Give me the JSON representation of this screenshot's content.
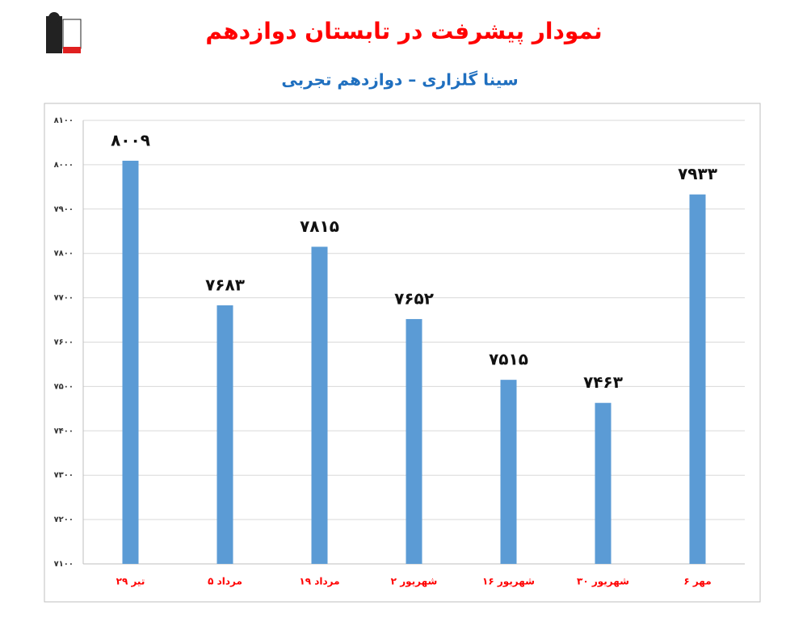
{
  "chart_data": {
    "type": "bar",
    "title": "نمودار پیشرفت در تابستان دوازدهم",
    "subtitle": "سینا گلزاری – دوازدهم تجربی",
    "categories": [
      "۲۹ تیر",
      "۵ مرداد",
      "۱۹ مرداد",
      "۲ شهریور",
      "۱۶ شهریور",
      "۳۰ شهریور",
      "۶ مهر"
    ],
    "values": [
      8009,
      7683,
      7815,
      7652,
      7515,
      7463,
      7933
    ],
    "value_labels": [
      "۸۰۰۹",
      "۷۶۸۳",
      "۷۸۱۵",
      "۷۶۵۲",
      "۷۵۱۵",
      "۷۴۶۳",
      "۷۹۳۳"
    ],
    "color": "#5b9bd5",
    "ylim": [
      7100,
      8100
    ],
    "yticks": [
      {
        "value": 7100,
        "label": "۷۱۰۰"
      },
      {
        "value": 7200,
        "label": "۷۲۰۰"
      },
      {
        "value": 7300,
        "label": "۷۳۰۰"
      },
      {
        "value": 7400,
        "label": "۷۴۰۰"
      },
      {
        "value": 7500,
        "label": "۷۵۰۰"
      },
      {
        "value": 7600,
        "label": "۷۶۰۰"
      },
      {
        "value": 7700,
        "label": "۷۷۰۰"
      },
      {
        "value": 7800,
        "label": "۷۸۰۰"
      },
      {
        "value": 7900,
        "label": "۷۹۰۰"
      },
      {
        "value": 8000,
        "label": "۸۰۰۰"
      },
      {
        "value": 8100,
        "label": "۸۱۰۰"
      }
    ],
    "grid": true
  }
}
